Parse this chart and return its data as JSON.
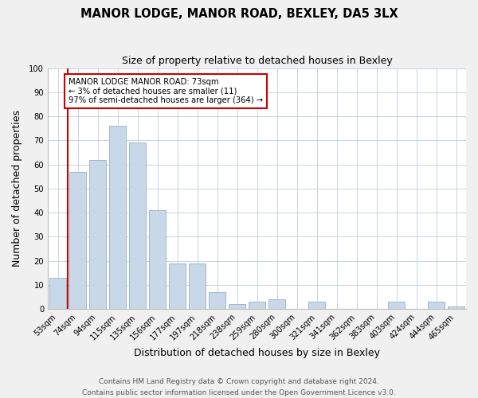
{
  "title": "MANOR LODGE, MANOR ROAD, BEXLEY, DA5 3LX",
  "subtitle": "Size of property relative to detached houses in Bexley",
  "xlabel": "Distribution of detached houses by size in Bexley",
  "ylabel": "Number of detached properties",
  "bar_labels": [
    "53sqm",
    "74sqm",
    "94sqm",
    "115sqm",
    "135sqm",
    "156sqm",
    "177sqm",
    "197sqm",
    "218sqm",
    "238sqm",
    "259sqm",
    "280sqm",
    "300sqm",
    "321sqm",
    "341sqm",
    "362sqm",
    "383sqm",
    "403sqm",
    "424sqm",
    "444sqm",
    "465sqm"
  ],
  "bar_heights": [
    13,
    57,
    62,
    76,
    69,
    41,
    19,
    19,
    7,
    2,
    3,
    4,
    0,
    3,
    0,
    0,
    0,
    3,
    0,
    3,
    1
  ],
  "bar_color": "#c8d8e8",
  "bar_edge_color": "#9fb8cc",
  "vline_color": "#cc0000",
  "annotation_text": "MANOR LODGE MANOR ROAD: 73sqm\n← 3% of detached houses are smaller (11)\n97% of semi-detached houses are larger (364) →",
  "annotation_box_color": "#ffffff",
  "annotation_box_edge": "#cc0000",
  "ylim": [
    0,
    100
  ],
  "yticks": [
    0,
    10,
    20,
    30,
    40,
    50,
    60,
    70,
    80,
    90,
    100
  ],
  "footer1": "Contains HM Land Registry data © Crown copyright and database right 2024.",
  "footer2": "Contains public sector information licensed under the Open Government Licence v3.0.",
  "bg_color": "#f0f0f0",
  "plot_bg_color": "#ffffff",
  "grid_color": "#c8d4e0"
}
